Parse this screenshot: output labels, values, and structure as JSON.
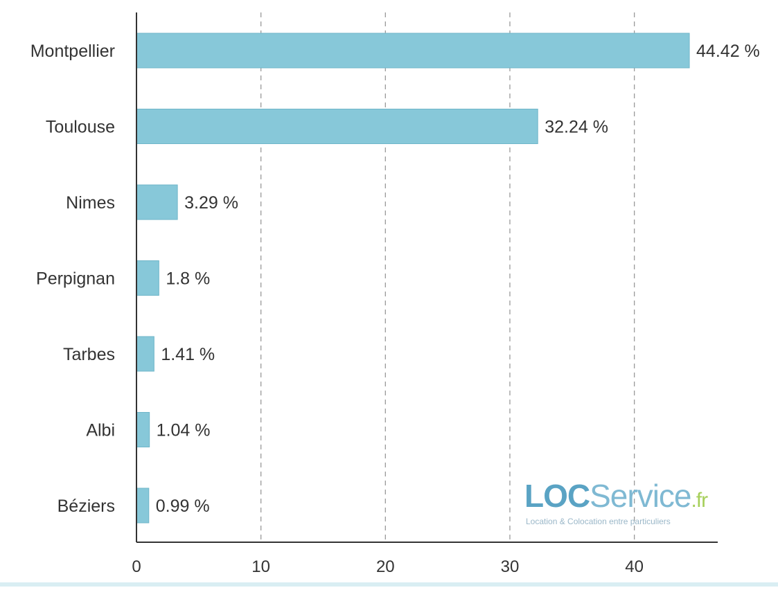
{
  "chart_data": {
    "type": "bar",
    "orientation": "horizontal",
    "categories": [
      "Montpellier",
      "Toulouse",
      "Nimes",
      "Perpignan",
      "Tarbes",
      "Albi",
      "Béziers"
    ],
    "values": [
      44.42,
      32.24,
      3.29,
      1.8,
      1.41,
      1.04,
      0.99
    ],
    "value_labels": [
      "44.42 %",
      "32.24 %",
      "3.29 %",
      "1.8 %",
      "1.41 %",
      "1.04 %",
      "0.99 %"
    ],
    "title": "",
    "xlabel": "",
    "ylabel": "",
    "xlim": [
      0,
      46.7
    ],
    "xticks": [
      0,
      10,
      20,
      30,
      40
    ],
    "grid": "vertical dashed",
    "bar_color": "#87c8d9",
    "bar_stroke": "#6fb6c9"
  },
  "logo": {
    "name": "LOCService.fr",
    "tagline": "Location & Colocation entre particuliers",
    "color_primary": "#5aa3c4",
    "color_accent": "#a6cf5a"
  }
}
